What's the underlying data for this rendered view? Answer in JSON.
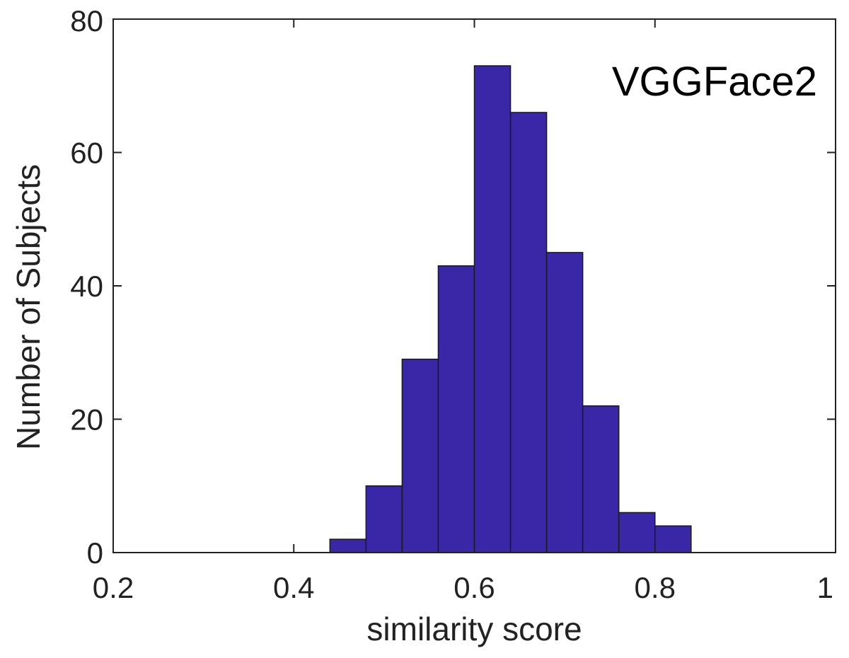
{
  "chart_data": {
    "type": "bar",
    "subtype": "histogram",
    "title": "",
    "annotation": "VGGFace2",
    "xlabel": "similarity score",
    "ylabel": "Number of Subjects",
    "xlim": [
      0.2,
      1
    ],
    "ylim": [
      0,
      80
    ],
    "xticks": [
      0.2,
      0.4,
      0.6,
      0.8,
      1
    ],
    "xtick_labels": [
      "0.2",
      "0.4",
      "0.6",
      "0.8",
      "1"
    ],
    "yticks": [
      0,
      20,
      40,
      60,
      80
    ],
    "ytick_labels": [
      "0",
      "20",
      "40",
      "60",
      "80"
    ],
    "bin_edges": [
      0.44,
      0.48,
      0.52,
      0.56,
      0.6,
      0.64,
      0.68,
      0.72,
      0.76,
      0.8,
      0.84
    ],
    "values": [
      2,
      10,
      29,
      43,
      73,
      66,
      45,
      22,
      6,
      4
    ],
    "grid": false,
    "bar_color": "#3a27a8",
    "edge_color": "#1a1a1a"
  }
}
